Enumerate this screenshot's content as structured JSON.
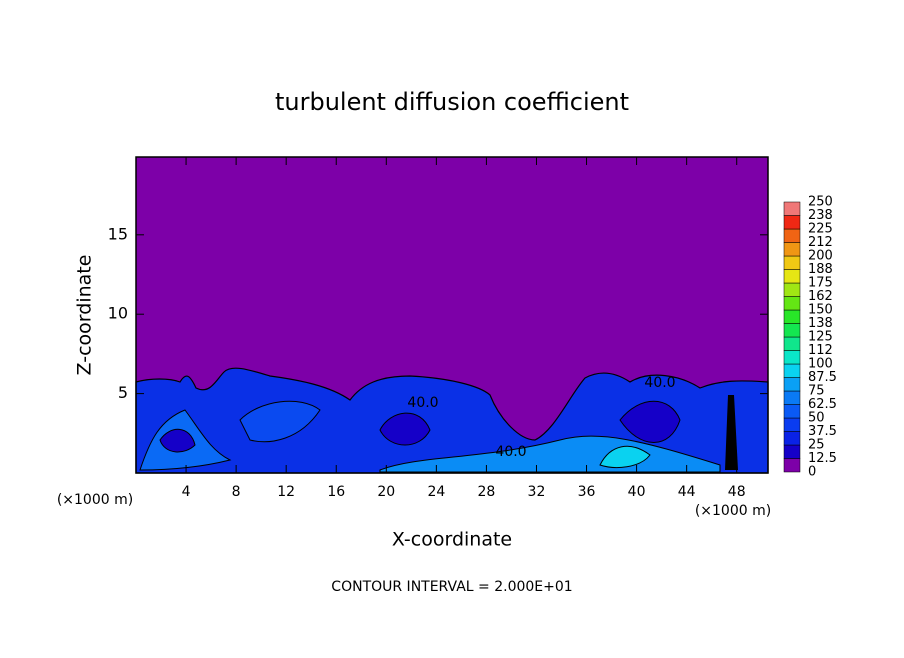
{
  "chart_data": {
    "type": "contour",
    "title": "turbulent diffusion coefficient",
    "xlabel": "X-coordinate",
    "ylabel": "Z-coordinate",
    "xunit": "(×1000 m)",
    "yunit": "(×1000 m)",
    "xlim": [
      0,
      50.5
    ],
    "xticks": [
      4,
      8,
      12,
      16,
      20,
      24,
      28,
      32,
      36,
      40,
      44,
      48
    ],
    "ylim": [
      0,
      19.9
    ],
    "yticks": [
      5,
      10,
      15
    ],
    "background_color": "#7d00a8",
    "colorbar": {
      "ticks": [
        0,
        12.5,
        25,
        37.5,
        50,
        62.5,
        75,
        87.5,
        100,
        112,
        125,
        138,
        150,
        162,
        175,
        188,
        200,
        212,
        225,
        238,
        250
      ],
      "colors": [
        "#7d00a8",
        "#1500c8",
        "#0a22e6",
        "#0a3cf0",
        "#0a5af5",
        "#0a7af5",
        "#0aa0f5",
        "#0ad2f0",
        "#0ae6c8",
        "#10e68c",
        "#14e650",
        "#28e628",
        "#64e614",
        "#a0e614",
        "#e6e614",
        "#f0c814",
        "#f09614",
        "#f06414",
        "#f02814",
        "#f07878"
      ]
    },
    "annotations": [
      "40.0",
      "40.0",
      "40.0"
    ],
    "footer": "CONTOUR INTERVAL = 2.000E+01"
  }
}
